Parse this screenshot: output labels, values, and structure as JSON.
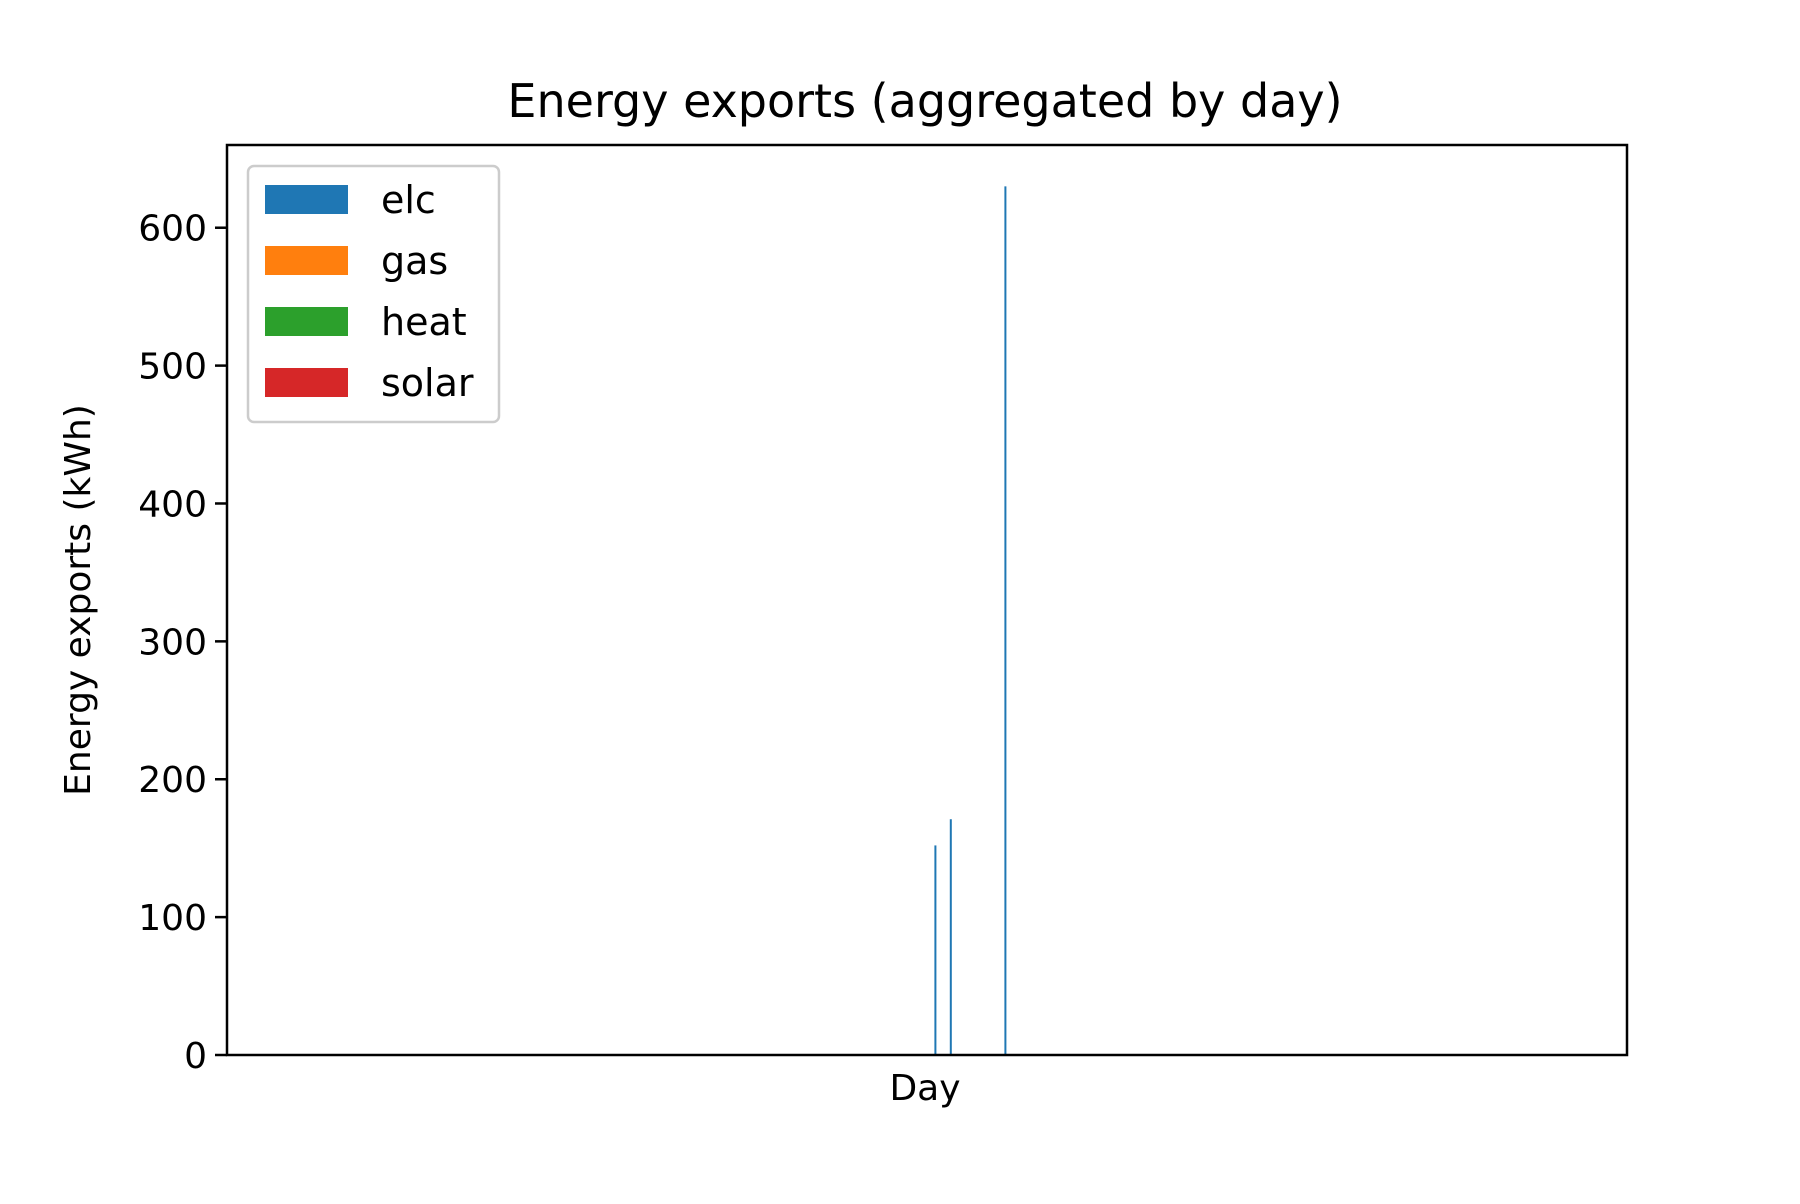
{
  "chart_data": {
    "type": "bar",
    "title": "Energy exports (aggregated by day)",
    "xlabel": "Day",
    "ylabel": "Energy exports (kWh)",
    "ylim": [
      0,
      660
    ],
    "yticks": [
      0,
      100,
      200,
      300,
      400,
      500,
      600
    ],
    "xticks": [],
    "grid": false,
    "legend": {
      "placement": "upper-left",
      "entries": [
        "elc",
        "gas",
        "heat",
        "solar"
      ]
    },
    "colors": {
      "elc": "#1f77b4",
      "gas": "#ff7f0e",
      "heat": "#2ca02c",
      "solar": "#d62728"
    },
    "x_range": [
      0,
      100
    ],
    "series": [
      {
        "name": "elc",
        "x": [
          50.6,
          51.7,
          55.6
        ],
        "values": [
          152,
          171,
          630
        ]
      },
      {
        "name": "gas",
        "x": [],
        "values": []
      },
      {
        "name": "heat",
        "x": [],
        "values": []
      },
      {
        "name": "solar",
        "x": [],
        "values": []
      }
    ]
  }
}
